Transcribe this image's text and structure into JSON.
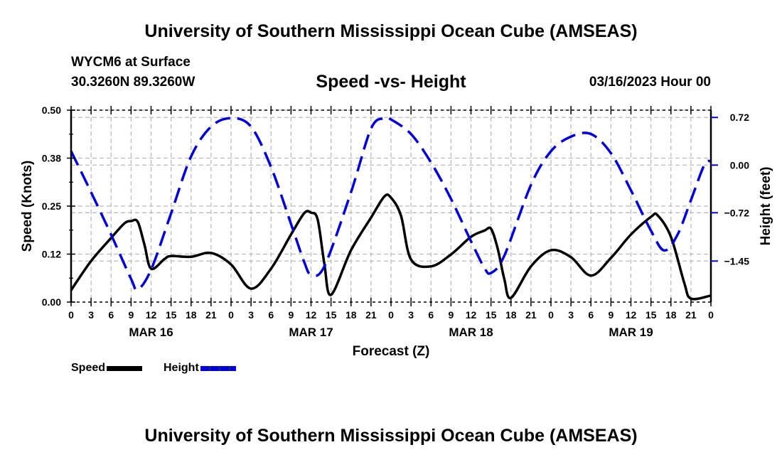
{
  "header": {
    "title": "University of Southern Mississippi Ocean Cube (AMSEAS)",
    "station": "WYCM6 at Surface",
    "coords": "30.3260N  89.3260W",
    "subtitle": "Speed -vs- Height",
    "datetime": "03/16/2023 Hour 00"
  },
  "footer": {
    "title": "University of Southern Mississippi Ocean Cube (AMSEAS)"
  },
  "legend": {
    "items": [
      {
        "label": "Speed",
        "color": "#000000"
      },
      {
        "label": "Height",
        "color": "#0000dd"
      }
    ]
  },
  "chart_data": {
    "type": "line",
    "title": "Speed -vs- Height",
    "xlabel": "Forecast (Z)",
    "ylabel": "Speed (Knots)",
    "y2label": "Height (feet)",
    "xlim": [
      0,
      96
    ],
    "ylim": [
      0,
      0.5
    ],
    "y2lim": [
      -2.07,
      0.83
    ],
    "grid": true,
    "legend_position": "bottom-left",
    "x_ticks": [
      0,
      3,
      6,
      9,
      12,
      15,
      18,
      21,
      24,
      27,
      30,
      33,
      36,
      39,
      42,
      45,
      48,
      51,
      54,
      57,
      60,
      63,
      66,
      69,
      72,
      75,
      78,
      81,
      84,
      87,
      90,
      93,
      96
    ],
    "x_tick_labels": [
      "0",
      "3",
      "6",
      "9",
      "12",
      "15",
      "18",
      "21",
      "0",
      "3",
      "6",
      "9",
      "12",
      "15",
      "18",
      "21",
      "0",
      "3",
      "6",
      "9",
      "12",
      "15",
      "18",
      "21",
      "0",
      "3",
      "6",
      "9",
      "12",
      "15",
      "18",
      "21",
      "0"
    ],
    "day_labels": [
      {
        "label": "MAR 16",
        "x": 12
      },
      {
        "label": "MAR 17",
        "x": 36
      },
      {
        "label": "MAR 18",
        "x": 60
      },
      {
        "label": "MAR 19",
        "x": 84
      }
    ],
    "y_ticks": [
      0.0,
      0.125,
      0.25,
      0.375,
      0.5
    ],
    "y_tick_labels": [
      "0.00",
      "0.12",
      "0.25",
      "0.38",
      "0.50"
    ],
    "y2_ticks": [
      0.72,
      0.0,
      -0.72,
      -1.45
    ],
    "y2_tick_labels": [
      "0.72",
      "0.00",
      "−0.72",
      "−1.45"
    ],
    "series": [
      {
        "name": "Speed",
        "axis": "left",
        "color": "#000000",
        "dash": "solid",
        "x": [
          0,
          3,
          6,
          8,
          9,
          10,
          11,
          12,
          14,
          15,
          18,
          21,
          24,
          27,
          30,
          33,
          35,
          36,
          37,
          38,
          39,
          42,
          45,
          47,
          48,
          49.5,
          51,
          54,
          57,
          60,
          62,
          63,
          64,
          65,
          66,
          69,
          72,
          75,
          78,
          81,
          84,
          87,
          88,
          90,
          92,
          93,
          96
        ],
        "values": [
          0.031,
          0.107,
          0.167,
          0.205,
          0.211,
          0.209,
          0.15,
          0.087,
          0.112,
          0.12,
          0.118,
          0.128,
          0.098,
          0.035,
          0.087,
          0.176,
          0.232,
          0.233,
          0.215,
          0.1,
          0.019,
          0.135,
          0.22,
          0.275,
          0.272,
          0.225,
          0.111,
          0.093,
          0.124,
          0.17,
          0.186,
          0.191,
          0.14,
          0.06,
          0.011,
          0.093,
          0.135,
          0.117,
          0.069,
          0.115,
          0.176,
          0.222,
          0.226,
          0.17,
          0.05,
          0.009,
          0.017
        ]
      },
      {
        "name": "Height",
        "axis": "right",
        "color": "#0000dd",
        "dash": "dashed",
        "x": [
          0,
          3,
          6,
          9,
          10,
          12,
          15,
          18,
          21,
          24,
          27,
          30,
          33,
          35,
          36,
          38,
          42,
          45,
          47,
          48,
          51,
          54,
          57,
          60,
          62,
          63,
          65,
          69,
          72,
          75,
          78,
          81,
          84,
          87,
          89,
          91,
          93,
          95,
          96
        ],
        "values": [
          0.21,
          -0.41,
          -1.05,
          -1.72,
          -1.88,
          -1.58,
          -0.73,
          0.13,
          0.58,
          0.71,
          0.58,
          -0.03,
          -0.89,
          -1.47,
          -1.65,
          -1.53,
          -0.41,
          0.55,
          0.71,
          0.69,
          0.47,
          0.04,
          -0.51,
          -1.15,
          -1.55,
          -1.63,
          -1.37,
          -0.3,
          0.21,
          0.43,
          0.47,
          0.18,
          -0.38,
          -0.99,
          -1.29,
          -1.05,
          -0.53,
          0.0,
          0.06
        ]
      }
    ]
  }
}
